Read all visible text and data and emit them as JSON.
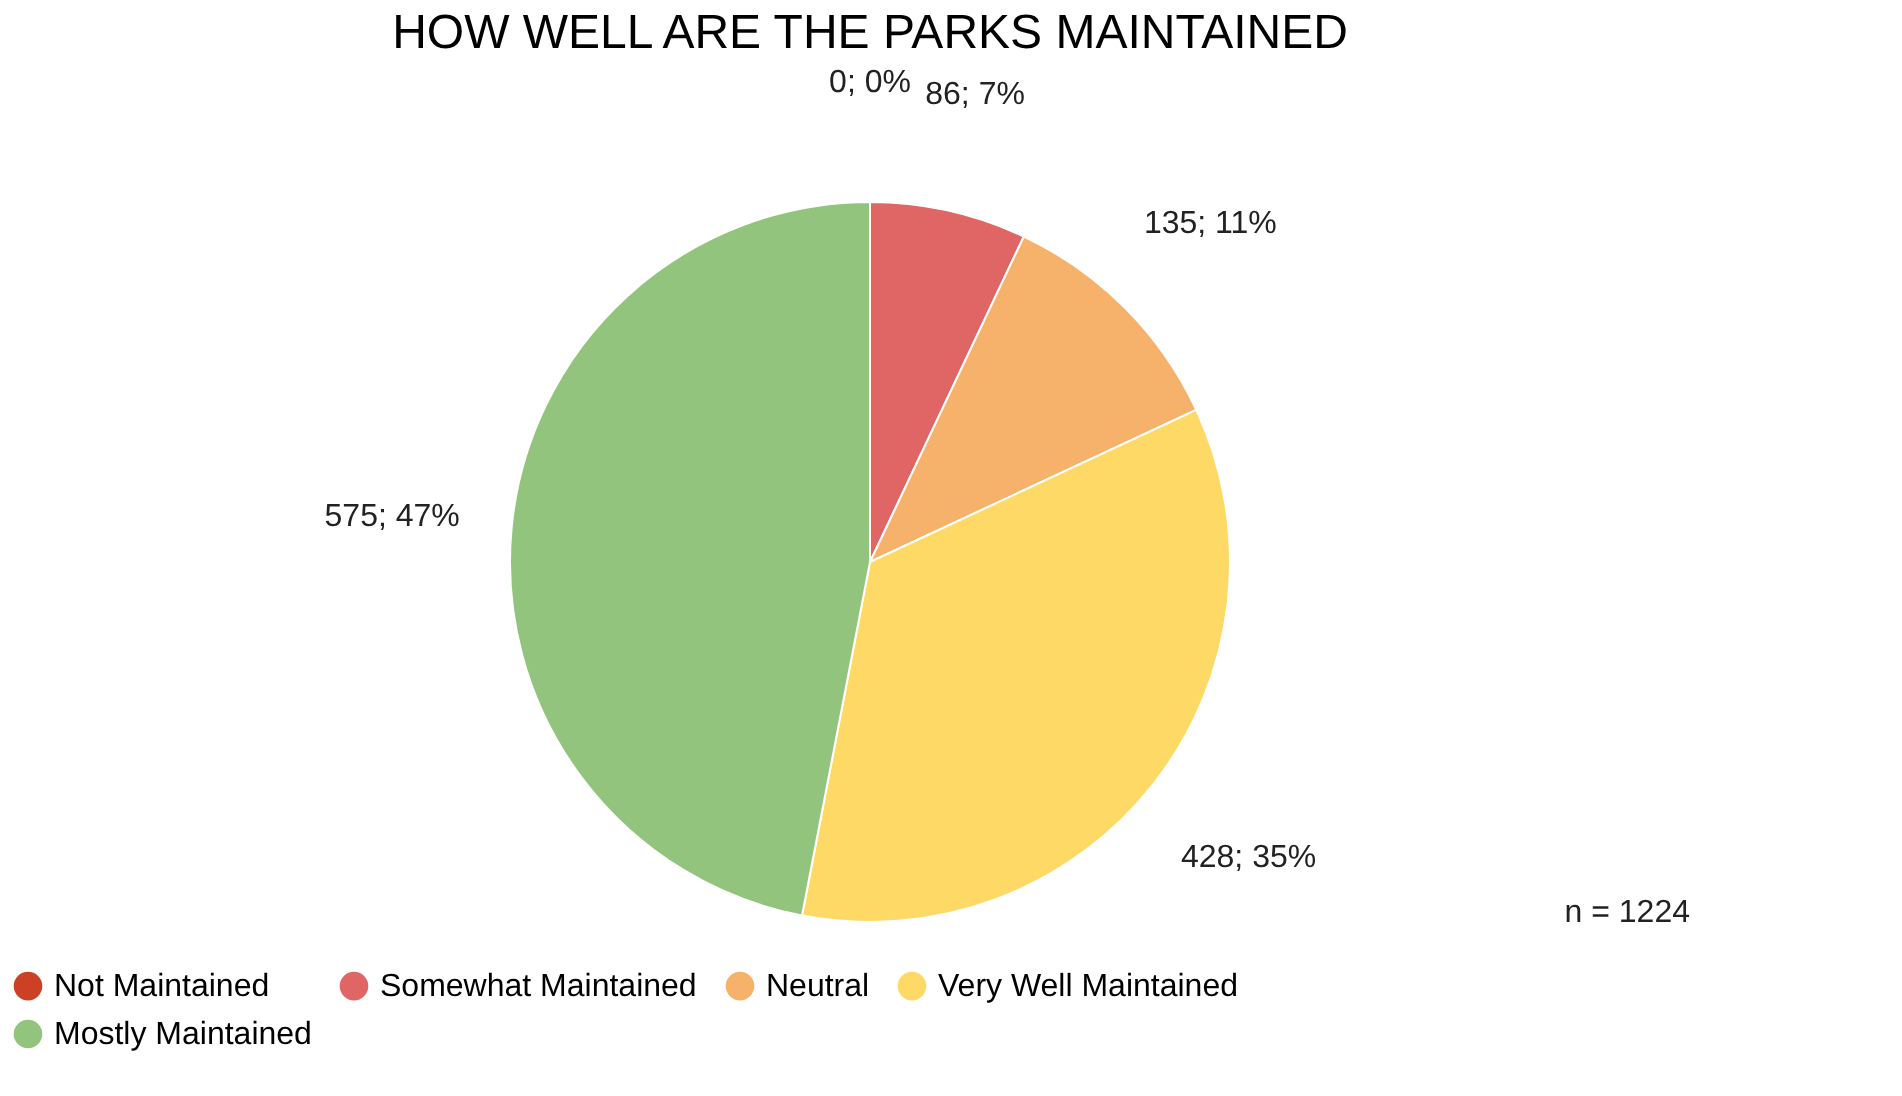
{
  "chart_data": {
    "type": "pie",
    "title": "HOW WELL ARE THE PARKS MAINTAINED",
    "categories": [
      "Not Maintained",
      "Somewhat Maintained",
      "Neutral",
      "Very Well Maintained",
      "Mostly Maintained"
    ],
    "values": [
      0,
      86,
      135,
      428,
      575
    ],
    "colors": [
      "#cc4125",
      "#e06666",
      "#f6b26b",
      "#ffd966",
      "#93c47d"
    ],
    "value_labels": [
      "0; 0%",
      "86; 7%",
      "135; 11%",
      "428; 35%",
      "575; 47%"
    ],
    "annotations": [
      "n = 1224"
    ],
    "legend": "bottom"
  }
}
